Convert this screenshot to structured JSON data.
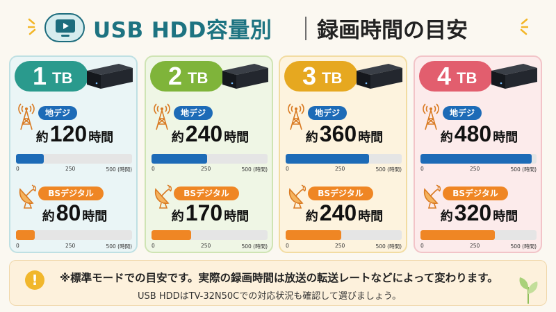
{
  "title": {
    "left": "USB HDD容量別",
    "right": "録画時間の目安",
    "icon": "tv-icon"
  },
  "cards": [
    {
      "capacity_num": "1",
      "capacity_unit": "TB",
      "color": "#2a9a8d",
      "bg": "#eaf5f6",
      "border": "#bfe0e3",
      "terrestrial": {
        "label": "地デジ",
        "prefix": "約",
        "hours": "120",
        "suffix": "時間",
        "value": 120
      },
      "bs": {
        "label": "BSデジタル",
        "prefix": "約",
        "hours": "80",
        "suffix": "時間",
        "value": 80
      }
    },
    {
      "capacity_num": "2",
      "capacity_unit": "TB",
      "color": "#7fb43a",
      "bg": "#eff6e5",
      "border": "#cfe4b4",
      "terrestrial": {
        "label": "地デジ",
        "prefix": "約",
        "hours": "240",
        "suffix": "時間",
        "value": 240
      },
      "bs": {
        "label": "BSデジタル",
        "prefix": "約",
        "hours": "170",
        "suffix": "時間",
        "value": 170
      }
    },
    {
      "capacity_num": "3",
      "capacity_unit": "TB",
      "color": "#e6a820",
      "bg": "#fdf3de",
      "border": "#f2dca2",
      "terrestrial": {
        "label": "地デジ",
        "prefix": "約",
        "hours": "360",
        "suffix": "時間",
        "value": 360
      },
      "bs": {
        "label": "BSデジタル",
        "prefix": "約",
        "hours": "240",
        "suffix": "時間",
        "value": 240
      }
    },
    {
      "capacity_num": "4",
      "capacity_unit": "TB",
      "color": "#e25e6e",
      "bg": "#fcebeb",
      "border": "#f2c4c8",
      "terrestrial": {
        "label": "地デジ",
        "prefix": "約",
        "hours": "480",
        "suffix": "時間",
        "value": 480
      },
      "bs": {
        "label": "BSデジタル",
        "prefix": "約",
        "hours": "320",
        "suffix": "時間",
        "value": 320
      }
    }
  ],
  "scale": {
    "tick0": "0",
    "tick250": "250",
    "tick500": "500 (時間)",
    "max": 500
  },
  "note": {
    "line1": "※標準モードでの目安です。実際の録画時間は放送の転送レートなどによって変わります。",
    "line2": "USB HDDはTV-32N50Cでの対応状況も確認して選びましょう。",
    "icon": "exclamation-icon"
  }
}
